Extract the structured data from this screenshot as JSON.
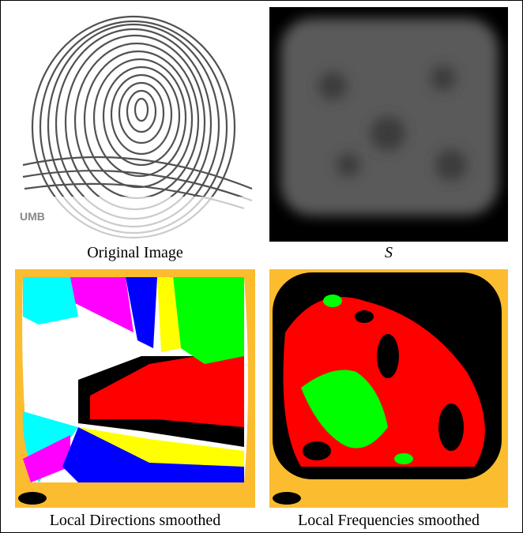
{
  "figure": {
    "panels": [
      {
        "caption": "Original Image",
        "overlay_text": "UMB"
      },
      {
        "caption": "S"
      },
      {
        "caption": "Local Directions smoothed"
      },
      {
        "caption": "Local Frequencies smoothed"
      }
    ]
  }
}
